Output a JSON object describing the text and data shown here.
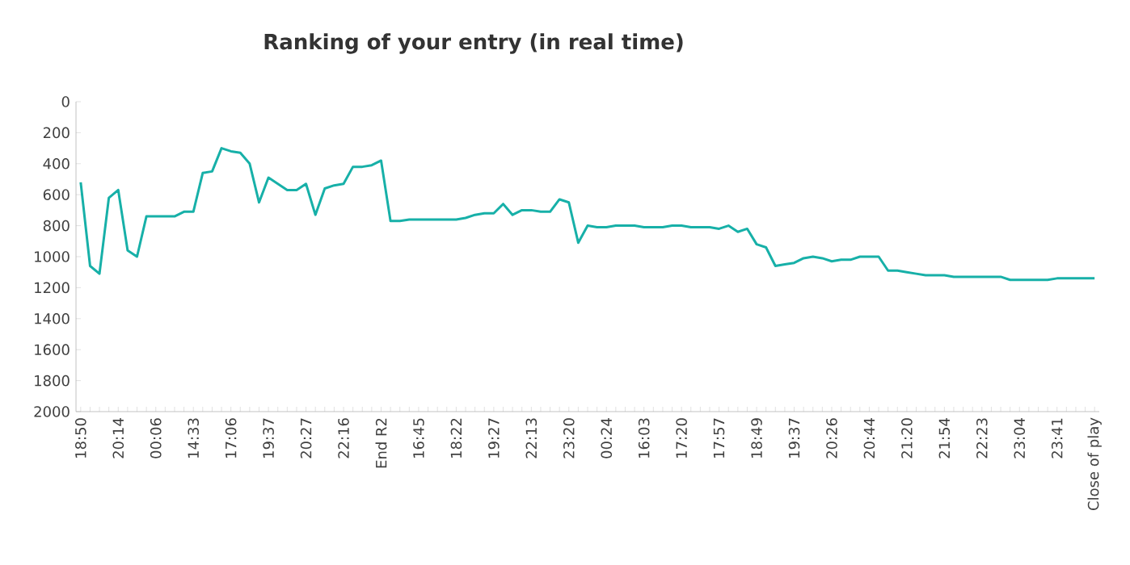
{
  "chart_data": {
    "type": "line",
    "title": "Ranking of your entry (in real time)",
    "categories": [
      "18:50",
      null,
      null,
      null,
      "20:14",
      null,
      null,
      null,
      "00:06",
      null,
      null,
      null,
      "14:33",
      null,
      null,
      null,
      "17:06",
      null,
      null,
      null,
      "19:37",
      null,
      null,
      null,
      "20:27",
      null,
      null,
      null,
      "22:16",
      null,
      null,
      null,
      "End R2",
      null,
      null,
      null,
      "16:45",
      null,
      null,
      null,
      "18:22",
      null,
      null,
      null,
      "19:27",
      null,
      null,
      null,
      "22:13",
      null,
      null,
      null,
      "23:20",
      null,
      null,
      null,
      "00:24",
      null,
      null,
      null,
      "16:03",
      null,
      null,
      null,
      "17:20",
      null,
      null,
      null,
      "17:57",
      null,
      null,
      null,
      "18:49",
      null,
      null,
      null,
      "19:37",
      null,
      null,
      null,
      "20:26",
      null,
      null,
      null,
      "20:44",
      null,
      null,
      null,
      "21:20",
      null,
      null,
      null,
      "21:54",
      null,
      null,
      null,
      "22:23",
      null,
      null,
      null,
      "23:04",
      null,
      null,
      null,
      "23:41",
      null,
      null,
      null,
      "Close of play"
    ],
    "series": [
      {
        "color": "#17b0a8",
        "values": [
          520,
          1060,
          1110,
          620,
          570,
          960,
          1000,
          740,
          740,
          740,
          740,
          710,
          710,
          460,
          450,
          300,
          320,
          330,
          400,
          650,
          490,
          530,
          570,
          570,
          530,
          730,
          560,
          540,
          530,
          420,
          420,
          410,
          380,
          770,
          770,
          760,
          760,
          760,
          760,
          760,
          760,
          750,
          730,
          720,
          720,
          660,
          730,
          700,
          700,
          710,
          710,
          630,
          650,
          910,
          800,
          810,
          810,
          800,
          800,
          800,
          810,
          810,
          810,
          800,
          800,
          810,
          810,
          810,
          820,
          800,
          840,
          820,
          920,
          940,
          1060,
          1050,
          1040,
          1010,
          1000,
          1010,
          1030,
          1020,
          1020,
          1000,
          1000,
          1000,
          1090,
          1090,
          1100,
          1110,
          1120,
          1120,
          1120,
          1130,
          1130,
          1130,
          1130,
          1130,
          1130,
          1150,
          1150,
          1150,
          1150,
          1150,
          1140,
          1140,
          1140,
          1140,
          1140
        ]
      }
    ],
    "ylim": [
      2000,
      0
    ],
    "yticks": [
      0,
      200,
      400,
      600,
      800,
      1000,
      1200,
      1400,
      1600,
      1800,
      2000
    ]
  }
}
